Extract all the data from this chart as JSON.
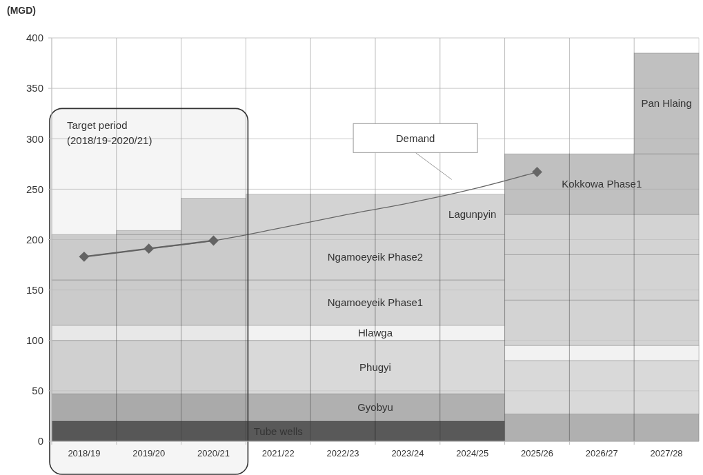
{
  "chart_data": {
    "type": "bar",
    "stacked": true,
    "ylabel": "(MGD)",
    "categories": [
      "2018/19",
      "2019/20",
      "2020/21",
      "2021/22",
      "2022/23",
      "2023/24",
      "2024/25",
      "2025/26",
      "2026/27",
      "2027/28"
    ],
    "series": [
      {
        "name": "Tube wells",
        "color": "#595959",
        "values": [
          20,
          20,
          20,
          20,
          20,
          20,
          20,
          null,
          null,
          null
        ]
      },
      {
        "name": "Gyobyu",
        "color": "#b0b0b0",
        "values": [
          27,
          27,
          27,
          27,
          27,
          27,
          27,
          27,
          27,
          27
        ]
      },
      {
        "name": "Phugyi",
        "color": "#d9d9d9",
        "values": [
          53,
          53,
          53,
          53,
          53,
          53,
          53,
          53,
          53,
          53
        ]
      },
      {
        "name": "Hlawga",
        "color": "#f2f2f2",
        "values": [
          15,
          15,
          15,
          15,
          15,
          15,
          15,
          15,
          15,
          15
        ]
      },
      {
        "name": "Ngamoeyeik Phase1",
        "color": "#d3d3d3",
        "values": [
          45,
          45,
          45,
          45,
          45,
          45,
          45,
          45,
          45,
          45
        ]
      },
      {
        "name": "Ngamoeyeik Phase2",
        "color": "#d3d3d3",
        "values": [
          45,
          45,
          45,
          45,
          45,
          45,
          45,
          45,
          45,
          45
        ]
      },
      {
        "name": "Lagunpyin",
        "color": "#d3d3d3",
        "values": [
          null,
          4,
          36,
          40,
          40,
          40,
          40,
          40,
          40,
          40
        ]
      },
      {
        "name": "Kokkowa Phase1",
        "color": "#c0c0c0",
        "values": [
          null,
          null,
          null,
          null,
          null,
          null,
          null,
          60,
          60,
          60
        ]
      },
      {
        "name": "Pan Hlaing",
        "color": "#c0c0c0",
        "values": [
          null,
          null,
          null,
          null,
          null,
          null,
          null,
          null,
          null,
          100
        ]
      },
      {
        "name": "Demand",
        "type": "line",
        "color": "#666666",
        "marker": "none",
        "values": [
          183,
          191,
          199,
          211,
          224,
          236,
          250,
          267,
          null,
          null
        ]
      },
      {
        "type": "line",
        "color": "#666666",
        "marker": "diamond",
        "values": [
          183,
          191,
          199,
          null,
          null,
          null,
          null,
          267,
          null,
          null
        ]
      }
    ],
    "ylim": [
      0,
      400
    ],
    "yticks": [
      0,
      50,
      100,
      150,
      200,
      250,
      300,
      350,
      400
    ],
    "grid": true,
    "bands": [
      {
        "axis": "x",
        "from": "2018/19",
        "to": "2020/21",
        "label": "Target period\n(2018/19-2020/21)"
      }
    ]
  }
}
